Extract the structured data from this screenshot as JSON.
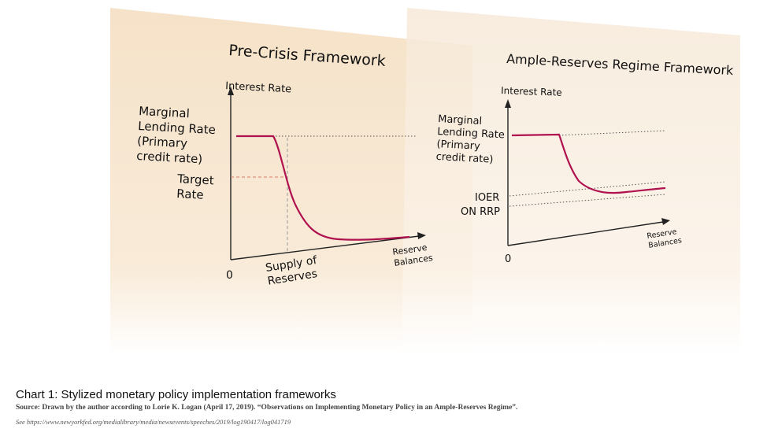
{
  "chart_data": [
    {
      "type": "diagram",
      "title": "Pre-Crisis Framework",
      "ylabel": "Interest Rate",
      "xlabel": "Reserve Balances",
      "origin_label": "0",
      "annotations": {
        "marginal_lending": [
          "Marginal",
          "Lending Rate",
          "(Primary",
          "credit rate)"
        ],
        "target_rate": [
          "Target",
          "Rate"
        ],
        "supply": [
          "Supply of",
          "Reserves"
        ]
      }
    },
    {
      "type": "diagram",
      "title": "Ample-Reserves Regime Framework",
      "ylabel": "Interest Rate",
      "xlabel": "Reserve Balances",
      "origin_label": "0",
      "annotations": {
        "marginal_lending": [
          "Marginal",
          "Lending Rate",
          "(Primary",
          "credit rate)"
        ],
        "ioer": "IOER",
        "on_rrp": "ON RRP"
      }
    }
  ],
  "caption": {
    "title": "Chart 1: Stylized monetary policy implementation frameworks",
    "source": "Source: Drawn by the author according to Lorie K. Logan (April 17, 2019). “Observations on Implementing Monetary Policy in an Ample-Reserves Regime”.",
    "see": "See https://www.newyorkfed.org/medialibrary/media/newsevents/speeches/2019/log190417/log041719"
  },
  "colors": {
    "curve": "#b0124f",
    "panel": "#f8e6cf",
    "axis": "#222222"
  }
}
